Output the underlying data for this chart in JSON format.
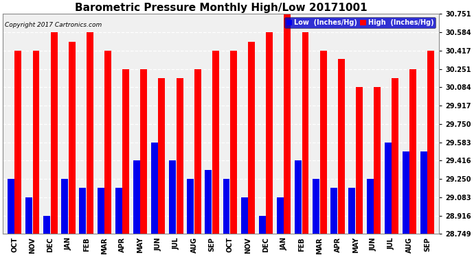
{
  "title": "Barometric Pressure Monthly High/Low 20171001",
  "copyright": "Copyright 2017 Cartronics.com",
  "legend_low": "Low  (Inches/Hg)",
  "legend_high": "High  (Inches/Hg)",
  "categories": [
    "OCT",
    "NOV",
    "DEC",
    "JAN",
    "FEB",
    "MAR",
    "APR",
    "MAY",
    "JUN",
    "JUL",
    "AUG",
    "SEP",
    "OCT",
    "NOV",
    "DEC",
    "JAN",
    "FEB",
    "MAR",
    "APR",
    "MAY",
    "JUN",
    "JUL",
    "AUG",
    "SEP"
  ],
  "high_values": [
    30.417,
    30.417,
    30.584,
    30.5,
    30.584,
    30.417,
    30.251,
    30.251,
    30.167,
    30.167,
    30.251,
    30.417,
    30.417,
    30.5,
    30.584,
    30.751,
    30.584,
    30.417,
    30.34,
    30.084,
    30.084,
    30.167,
    30.251,
    30.417
  ],
  "low_values": [
    29.25,
    29.083,
    28.916,
    29.25,
    29.167,
    29.167,
    29.167,
    29.416,
    29.583,
    29.416,
    29.25,
    29.333,
    29.25,
    29.083,
    28.916,
    29.083,
    29.416,
    29.25,
    29.167,
    29.167,
    29.25,
    29.583,
    29.5,
    29.5
  ],
  "bar_color_high": "#ff0000",
  "bar_color_low": "#0000ee",
  "bg_color": "#ffffff",
  "plot_bg_color": "#f0f0f0",
  "yticks": [
    28.749,
    28.916,
    29.083,
    29.25,
    29.416,
    29.583,
    29.75,
    29.917,
    30.084,
    30.251,
    30.417,
    30.584,
    30.751
  ],
  "ymin": 28.749,
  "ymax": 30.751,
  "title_fontsize": 11,
  "tick_fontsize": 7,
  "copyright_fontsize": 6.5,
  "legend_fontsize": 7
}
